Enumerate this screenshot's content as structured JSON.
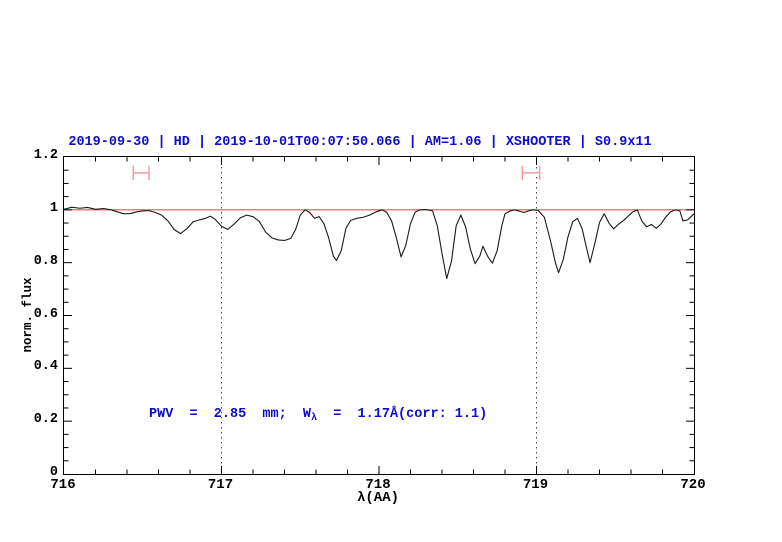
{
  "title": {
    "text": "2019-09-30 | HD | 2019-10-01T00:07:50.066 | AM=1.06 | XSHOOTER | S0.9x11",
    "color": "#0d0dd0"
  },
  "annotation": {
    "part1": "PWV  =  2.85  mm;  W",
    "sub": "λ",
    "part2": "  =  1.17Å(corr: 1.1)",
    "color": "#0d0dd0"
  },
  "chart_data": {
    "type": "line",
    "title": "2019-09-30 | HD | 2019-10-01T00:07:50.066 | AM=1.06 | XSHOOTER | S0.9x11",
    "xlabel": "λ(AA)",
    "ylabel": "norm. flux",
    "xlim": [
      716,
      720
    ],
    "ylim": [
      0,
      1.2
    ],
    "grid": "off",
    "legend": "none",
    "x_ticks_major": [
      716,
      717,
      718,
      719,
      720
    ],
    "x_tick_labels": [
      "716",
      "717",
      "718",
      "719",
      "720"
    ],
    "x_minor_step": 0.2,
    "y_ticks_major": [
      0,
      0.2,
      0.4,
      0.6,
      0.8,
      1,
      1.2
    ],
    "y_tick_labels": [
      "0",
      "0.2",
      "0.4",
      "0.6",
      "0.8",
      "1",
      "1.2"
    ],
    "y_minor_step": 0.05,
    "guides_x": [
      717,
      719
    ],
    "continuum_y": 1.0,
    "range_markers": [
      {
        "x1": 716.44,
        "x2": 716.54,
        "y": 1.14,
        "cap_half_height": 0.027
      },
      {
        "x1": 718.91,
        "x2": 719.02,
        "y": 1.14,
        "cap_half_height": 0.027
      }
    ],
    "colors": {
      "spectrum": "#1a1a1a",
      "continuum": "#e05454",
      "marker": "#f49c9c",
      "guide": "#444444",
      "frame": "#000000",
      "label": "#000000",
      "annotation_blue": "#0d0dd0"
    },
    "series": [
      {
        "name": "normalized spectrum",
        "points": [
          [
            716.0,
            1.002
          ],
          [
            716.05,
            1.01
          ],
          [
            716.1,
            1.006
          ],
          [
            716.15,
            1.009
          ],
          [
            716.2,
            1.002
          ],
          [
            716.25,
            1.005
          ],
          [
            716.3,
            1.0
          ],
          [
            716.34,
            0.992
          ],
          [
            716.38,
            0.985
          ],
          [
            716.42,
            0.986
          ],
          [
            716.46,
            0.992
          ],
          [
            716.5,
            0.996
          ],
          [
            716.54,
            0.997
          ],
          [
            716.58,
            0.99
          ],
          [
            716.62,
            0.98
          ],
          [
            716.66,
            0.958
          ],
          [
            716.7,
            0.925
          ],
          [
            716.74,
            0.91
          ],
          [
            716.78,
            0.928
          ],
          [
            716.82,
            0.955
          ],
          [
            716.86,
            0.962
          ],
          [
            716.9,
            0.968
          ],
          [
            716.93,
            0.976
          ],
          [
            716.96,
            0.964
          ],
          [
            717.0,
            0.938
          ],
          [
            717.04,
            0.926
          ],
          [
            717.08,
            0.946
          ],
          [
            717.12,
            0.97
          ],
          [
            717.16,
            0.98
          ],
          [
            717.2,
            0.974
          ],
          [
            717.24,
            0.956
          ],
          [
            717.28,
            0.916
          ],
          [
            717.32,
            0.894
          ],
          [
            717.36,
            0.886
          ],
          [
            717.4,
            0.884
          ],
          [
            717.44,
            0.892
          ],
          [
            717.47,
            0.925
          ],
          [
            717.5,
            0.98
          ],
          [
            717.53,
            1.0
          ],
          [
            717.56,
            0.99
          ],
          [
            717.59,
            0.968
          ],
          [
            717.62,
            0.974
          ],
          [
            717.65,
            0.948
          ],
          [
            717.68,
            0.895
          ],
          [
            717.71,
            0.825
          ],
          [
            717.73,
            0.808
          ],
          [
            717.76,
            0.845
          ],
          [
            717.79,
            0.93
          ],
          [
            717.82,
            0.96
          ],
          [
            717.86,
            0.968
          ],
          [
            717.9,
            0.972
          ],
          [
            717.94,
            0.98
          ],
          [
            717.98,
            0.992
          ],
          [
            718.02,
            1.0
          ],
          [
            718.05,
            0.99
          ],
          [
            718.08,
            0.958
          ],
          [
            718.11,
            0.895
          ],
          [
            718.14,
            0.822
          ],
          [
            718.17,
            0.865
          ],
          [
            718.2,
            0.948
          ],
          [
            718.23,
            0.992
          ],
          [
            718.26,
            1.0
          ],
          [
            718.3,
            1.001
          ],
          [
            718.34,
            0.996
          ],
          [
            718.37,
            0.94
          ],
          [
            718.4,
            0.835
          ],
          [
            718.43,
            0.74
          ],
          [
            718.46,
            0.805
          ],
          [
            718.49,
            0.94
          ],
          [
            718.52,
            0.98
          ],
          [
            718.55,
            0.935
          ],
          [
            718.58,
            0.852
          ],
          [
            718.61,
            0.796
          ],
          [
            718.64,
            0.825
          ],
          [
            718.66,
            0.862
          ],
          [
            718.69,
            0.824
          ],
          [
            718.72,
            0.798
          ],
          [
            718.75,
            0.845
          ],
          [
            718.78,
            0.94
          ],
          [
            718.8,
            0.985
          ],
          [
            718.83,
            0.995
          ],
          [
            718.86,
            1.0
          ],
          [
            718.89,
            0.995
          ],
          [
            718.92,
            0.99
          ],
          [
            718.95,
            0.996
          ],
          [
            718.98,
            1.0
          ],
          [
            719.01,
            0.998
          ],
          [
            719.05,
            0.972
          ],
          [
            719.09,
            0.88
          ],
          [
            719.12,
            0.8
          ],
          [
            719.14,
            0.762
          ],
          [
            719.17,
            0.812
          ],
          [
            719.2,
            0.898
          ],
          [
            719.23,
            0.955
          ],
          [
            719.26,
            0.968
          ],
          [
            719.29,
            0.928
          ],
          [
            719.32,
            0.85
          ],
          [
            719.34,
            0.8
          ],
          [
            719.37,
            0.872
          ],
          [
            719.4,
            0.952
          ],
          [
            719.43,
            0.985
          ],
          [
            719.46,
            0.95
          ],
          [
            719.49,
            0.928
          ],
          [
            719.52,
            0.945
          ],
          [
            719.55,
            0.958
          ],
          [
            719.58,
            0.975
          ],
          [
            719.61,
            0.992
          ],
          [
            719.64,
            1.0
          ],
          [
            719.67,
            0.956
          ],
          [
            719.7,
            0.936
          ],
          [
            719.73,
            0.945
          ],
          [
            719.76,
            0.93
          ],
          [
            719.79,
            0.946
          ],
          [
            719.82,
            0.972
          ],
          [
            719.85,
            0.992
          ],
          [
            719.88,
            1.0
          ],
          [
            719.91,
            0.996
          ],
          [
            719.93,
            0.958
          ],
          [
            719.96,
            0.962
          ],
          [
            720.0,
            0.985
          ]
        ]
      }
    ]
  }
}
